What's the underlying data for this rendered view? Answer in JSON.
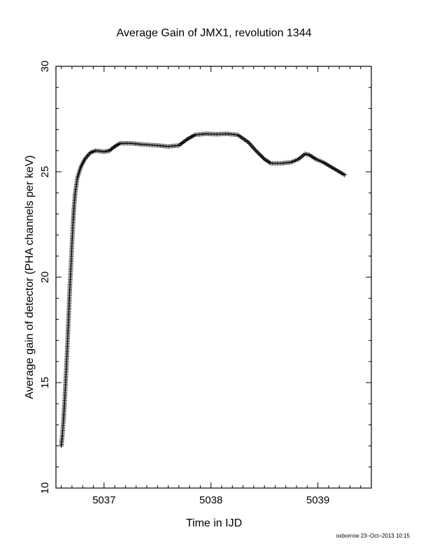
{
  "chart_data": {
    "type": "scatter",
    "title": "Average Gain of JMX1, revolution 1344",
    "xlabel": "Time in IJD",
    "ylabel": "Average gain of detector (PHA channels per keV)",
    "xlim": [
      5036.55,
      5039.5
    ],
    "ylim": [
      10,
      30
    ],
    "x_ticks": [
      5037,
      5038,
      5039
    ],
    "x_tick_labels": [
      "5037",
      "5038",
      "5039"
    ],
    "y_ticks": [
      10,
      15,
      20,
      25,
      30
    ],
    "y_tick_labels": [
      "10",
      "15",
      "20",
      "25",
      "30"
    ],
    "grid": false,
    "marker": "+",
    "series": [
      {
        "values_xy": [
          [
            5036.6,
            12.0
          ],
          [
            5036.61,
            12.5
          ],
          [
            5036.62,
            13.2
          ],
          [
            5036.63,
            14.0
          ],
          [
            5036.64,
            15.0
          ],
          [
            5036.65,
            16.0
          ],
          [
            5036.66,
            17.1
          ],
          [
            5036.67,
            18.3
          ],
          [
            5036.68,
            19.5
          ],
          [
            5036.69,
            20.5
          ],
          [
            5036.7,
            21.6
          ],
          [
            5036.71,
            22.6
          ],
          [
            5036.72,
            23.4
          ],
          [
            5036.73,
            24.0
          ],
          [
            5036.75,
            24.7
          ],
          [
            5036.78,
            25.2
          ],
          [
            5036.82,
            25.6
          ],
          [
            5036.87,
            25.9
          ],
          [
            5036.92,
            26.0
          ],
          [
            5037.0,
            25.95
          ],
          [
            5037.05,
            26.0
          ],
          [
            5037.1,
            26.2
          ],
          [
            5037.15,
            26.35
          ],
          [
            5037.25,
            26.35
          ],
          [
            5037.35,
            26.3
          ],
          [
            5037.5,
            26.25
          ],
          [
            5037.6,
            26.2
          ],
          [
            5037.7,
            26.25
          ],
          [
            5037.78,
            26.55
          ],
          [
            5037.85,
            26.75
          ],
          [
            5037.95,
            26.8
          ],
          [
            5038.05,
            26.78
          ],
          [
            5038.15,
            26.8
          ],
          [
            5038.25,
            26.75
          ],
          [
            5038.35,
            26.4
          ],
          [
            5038.42,
            26.0
          ],
          [
            5038.5,
            25.6
          ],
          [
            5038.56,
            25.4
          ],
          [
            5038.65,
            25.4
          ],
          [
            5038.75,
            25.45
          ],
          [
            5038.82,
            25.6
          ],
          [
            5038.88,
            25.85
          ],
          [
            5038.92,
            25.8
          ],
          [
            5038.98,
            25.6
          ],
          [
            5039.05,
            25.45
          ],
          [
            5039.15,
            25.15
          ],
          [
            5039.25,
            24.85
          ]
        ]
      }
    ]
  },
  "footer_text": "oxborrow 23–Oct–2013 10:15"
}
